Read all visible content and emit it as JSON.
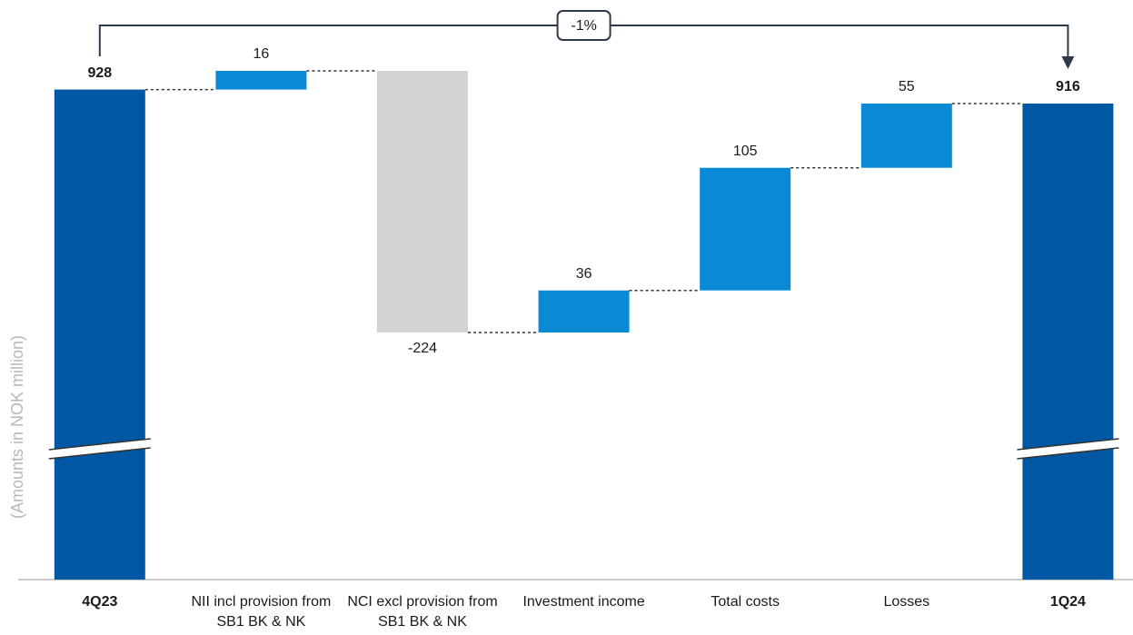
{
  "chart_data": {
    "type": "waterfall",
    "y_label": "(Amounts in NOK million)",
    "annotation": "-1%",
    "categories": [
      "4Q23",
      "NII incl provision from SB1 BK & NK",
      "NCI excl provision from SB1 BK & NK",
      "Investment income",
      "Total costs",
      "Losses",
      "1Q24"
    ],
    "values": [
      928,
      16,
      -224,
      36,
      105,
      55,
      916
    ],
    "measure": [
      "total",
      "relative",
      "relative",
      "relative",
      "relative",
      "relative",
      "total"
    ],
    "total_color": "#0057a3",
    "increase_color": "#0a8ad4",
    "decrease_color": "#d3d3d3",
    "axis_break": true
  }
}
